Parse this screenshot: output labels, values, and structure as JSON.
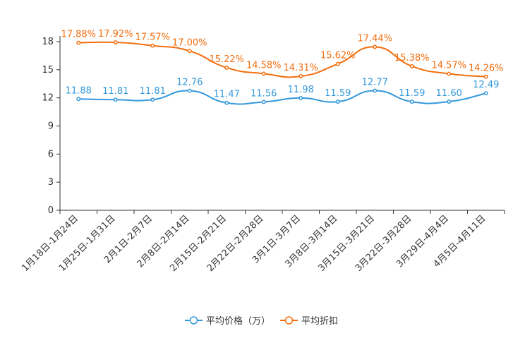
{
  "chart_data": {
    "type": "line",
    "categories": [
      "1月18日-1月24日",
      "1月25日-1月31日",
      "2月1日-2月7日",
      "2月8日-2月14日",
      "2月15日-2月21日",
      "2月22日-2月28日",
      "3月1日-3月7日",
      "3月8日-3月14日",
      "3月15日-3月21日",
      "3月22日-3月28日",
      "3月29日-4月4日",
      "4月5日-4月11日"
    ],
    "series": [
      {
        "name": "平均价格（万）",
        "color": "#3398DB",
        "values": [
          11.88,
          11.81,
          11.81,
          12.76,
          11.47,
          11.56,
          11.98,
          11.59,
          12.77,
          11.59,
          11.6,
          12.49
        ],
        "labels": [
          "11.88",
          "11.81",
          "11.81",
          "12.76",
          "11.47",
          "11.56",
          "11.98",
          "11.59",
          "12.77",
          "11.59",
          "11.60",
          "12.49"
        ]
      },
      {
        "name": "平均折扣",
        "color": "#F26E0E",
        "values": [
          17.88,
          17.92,
          17.57,
          17.0,
          15.22,
          14.58,
          14.31,
          15.62,
          17.44,
          15.38,
          14.57,
          14.26
        ],
        "labels": [
          "17.88%",
          "17.92%",
          "17.57%",
          "17.00%",
          "15.22%",
          "14.58%",
          "14.31%",
          "15.62%",
          "17.44%",
          "15.38%",
          "14.57%",
          "14.26%"
        ]
      }
    ],
    "y_ticks": [
      "0",
      "3",
      "6",
      "9",
      "12",
      "15",
      "18"
    ],
    "ylim": [
      0,
      18
    ],
    "title": "",
    "xlabel": "",
    "ylabel": "",
    "legend_position": "bottom-center",
    "smooth": true,
    "grid": false
  }
}
